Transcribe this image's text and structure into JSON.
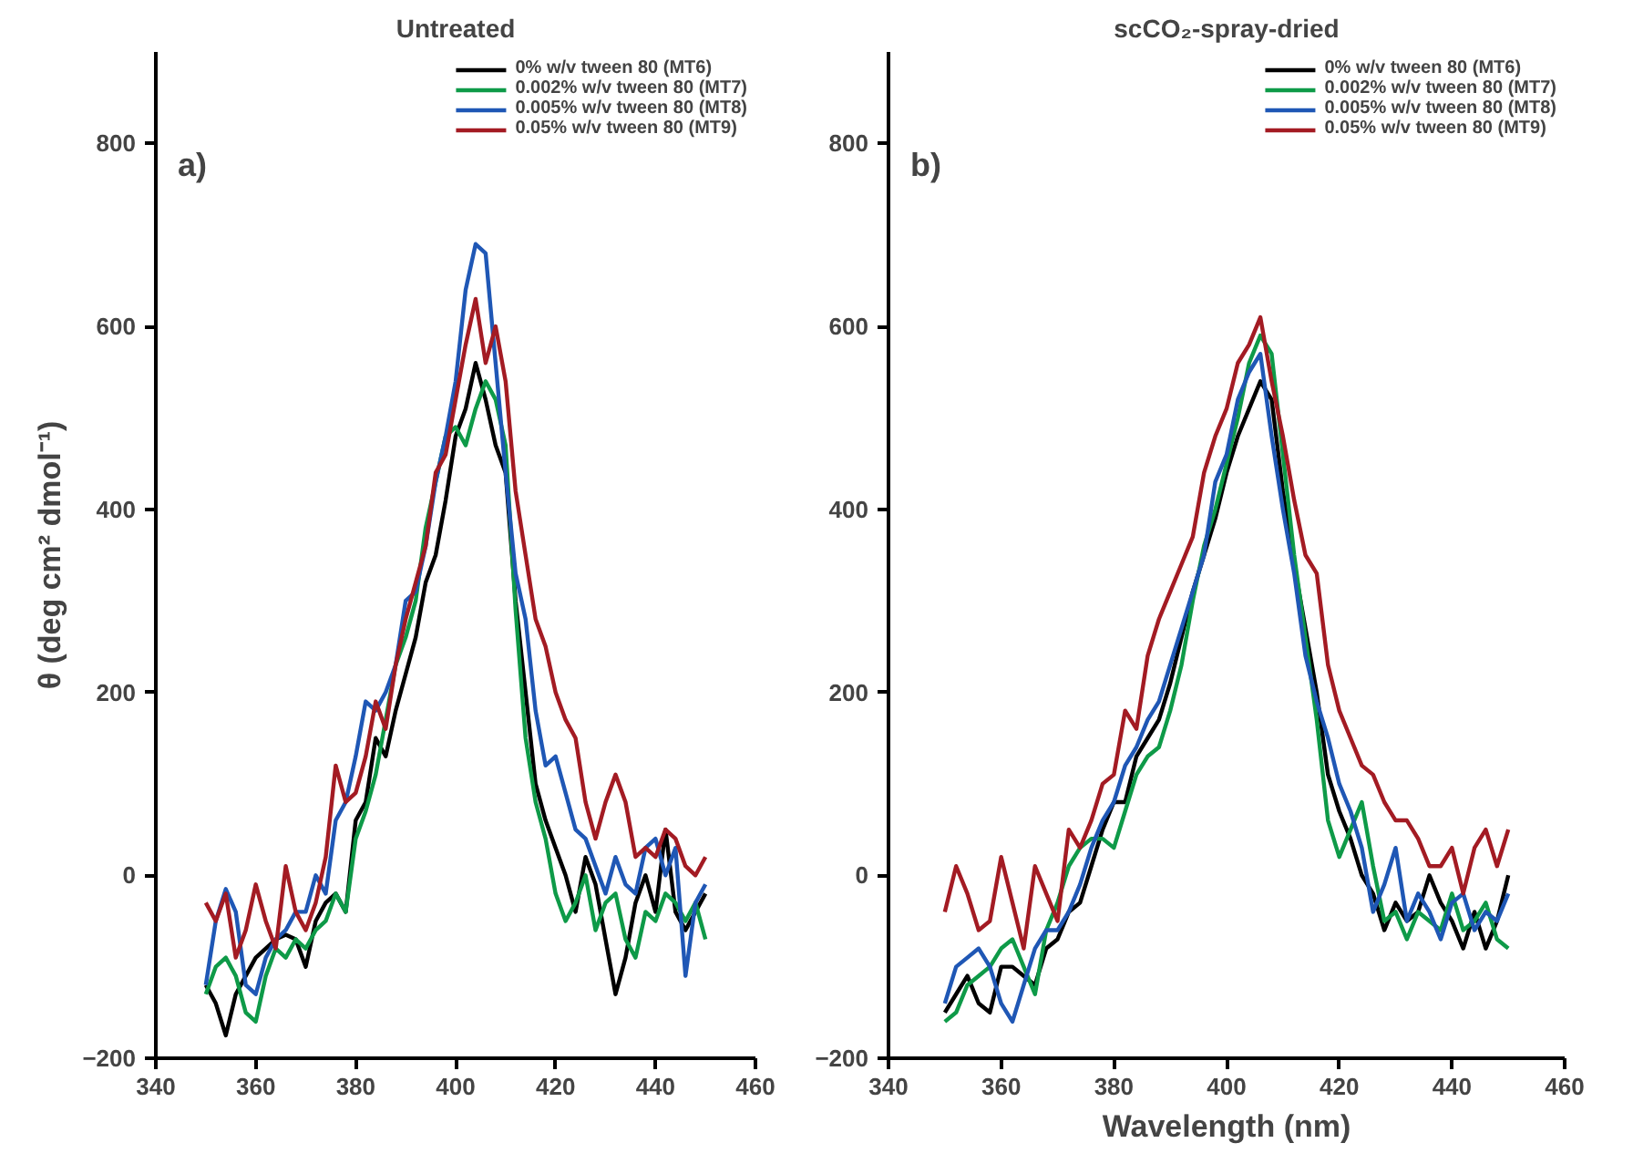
{
  "chart_data": [
    {
      "type": "line",
      "title": "Untreated",
      "ylabel": "θ (deg cm² dmol⁻¹)",
      "annotations": [
        "a)"
      ],
      "x": [
        350,
        352,
        354,
        356,
        358,
        360,
        362,
        364,
        366,
        368,
        370,
        372,
        374,
        376,
        378,
        380,
        382,
        384,
        386,
        388,
        390,
        392,
        394,
        396,
        398,
        400,
        402,
        404,
        406,
        408,
        410,
        412,
        414,
        416,
        418,
        420,
        422,
        424,
        426,
        428,
        430,
        432,
        434,
        436,
        438,
        440,
        442,
        444,
        446,
        448,
        450
      ],
      "series": [
        {
          "name": "0% w/v tween 80 (MT6)",
          "color": "#000000",
          "values": [
            -120,
            -140,
            -175,
            -130,
            -110,
            -90,
            -80,
            -70,
            -65,
            -70,
            -100,
            -50,
            -30,
            -20,
            -40,
            60,
            80,
            150,
            130,
            180,
            220,
            260,
            320,
            350,
            410,
            480,
            510,
            560,
            520,
            470,
            440,
            300,
            200,
            100,
            60,
            30,
            0,
            -40,
            20,
            -10,
            -70,
            -130,
            -90,
            -30,
            0,
            -40,
            50,
            -40,
            -60,
            -40,
            -20
          ]
        },
        {
          "name": "0.002% w/v tween 80 (MT7)",
          "color": "#0e9a48",
          "values": [
            -130,
            -100,
            -90,
            -110,
            -150,
            -160,
            -110,
            -80,
            -90,
            -70,
            -80,
            -60,
            -50,
            -20,
            -40,
            40,
            70,
            110,
            170,
            230,
            260,
            300,
            380,
            430,
            480,
            490,
            470,
            510,
            540,
            520,
            470,
            290,
            150,
            80,
            40,
            -20,
            -50,
            -30,
            0,
            -60,
            -30,
            -20,
            -70,
            -90,
            -40,
            -50,
            -20,
            -30,
            -50,
            -30,
            -70
          ]
        },
        {
          "name": "0.005% w/v tween 80 (MT8)",
          "color": "#1f57b5",
          "values": [
            -120,
            -50,
            -15,
            -40,
            -120,
            -130,
            -90,
            -70,
            -60,
            -40,
            -40,
            0,
            -20,
            60,
            80,
            130,
            190,
            180,
            200,
            230,
            300,
            310,
            360,
            430,
            480,
            540,
            640,
            690,
            680,
            560,
            440,
            330,
            280,
            180,
            120,
            130,
            90,
            50,
            40,
            10,
            -20,
            20,
            -10,
            -20,
            30,
            40,
            0,
            30,
            -110,
            -30,
            -10
          ]
        },
        {
          "name": "0.05% w/v tween 80 (MT9)",
          "color": "#a31b23",
          "values": [
            -30,
            -50,
            -20,
            -90,
            -60,
            -10,
            -50,
            -80,
            10,
            -40,
            -60,
            -30,
            20,
            120,
            80,
            90,
            130,
            190,
            160,
            230,
            280,
            320,
            360,
            440,
            460,
            520,
            580,
            630,
            560,
            600,
            540,
            420,
            350,
            280,
            250,
            200,
            170,
            150,
            80,
            40,
            80,
            110,
            80,
            20,
            30,
            20,
            50,
            40,
            10,
            0,
            20
          ]
        }
      ],
      "xlim": [
        340,
        460
      ],
      "ylim": [
        -200,
        900
      ],
      "xticks": [
        340,
        360,
        380,
        400,
        420,
        440,
        460
      ],
      "yticks": [
        -200,
        0,
        200,
        400,
        600,
        800
      ],
      "legend": "top right",
      "line_style": "solid"
    },
    {
      "type": "line",
      "title": "scCO₂-spray-dried",
      "xlabel": "Wavelength (nm)",
      "annotations": [
        "b)"
      ],
      "x": [
        350,
        352,
        354,
        356,
        358,
        360,
        362,
        364,
        366,
        368,
        370,
        372,
        374,
        376,
        378,
        380,
        382,
        384,
        386,
        388,
        390,
        392,
        394,
        396,
        398,
        400,
        402,
        404,
        406,
        408,
        410,
        412,
        414,
        416,
        418,
        420,
        422,
        424,
        426,
        428,
        430,
        432,
        434,
        436,
        438,
        440,
        442,
        444,
        446,
        448,
        450
      ],
      "series": [
        {
          "name": "0% w/v tween 80 (MT6)",
          "color": "#000000",
          "values": [
            -150,
            -130,
            -110,
            -140,
            -150,
            -100,
            -100,
            -110,
            -120,
            -80,
            -70,
            -40,
            -30,
            10,
            50,
            80,
            80,
            130,
            150,
            170,
            210,
            260,
            310,
            350,
            390,
            440,
            480,
            510,
            540,
            520,
            420,
            340,
            270,
            200,
            110,
            70,
            40,
            0,
            -20,
            -60,
            -30,
            -50,
            -40,
            0,
            -30,
            -50,
            -80,
            -40,
            -80,
            -50,
            0
          ]
        },
        {
          "name": "0.002% w/v tween 80 (MT7)",
          "color": "#0e9a48",
          "values": [
            -160,
            -150,
            -120,
            -110,
            -100,
            -80,
            -70,
            -100,
            -130,
            -60,
            -30,
            10,
            30,
            40,
            40,
            30,
            70,
            110,
            130,
            140,
            180,
            230,
            300,
            360,
            400,
            450,
            500,
            560,
            590,
            570,
            460,
            350,
            260,
            170,
            60,
            20,
            50,
            80,
            10,
            -50,
            -40,
            -70,
            -40,
            -50,
            -60,
            -20,
            -60,
            -50,
            -30,
            -70,
            -80
          ]
        },
        {
          "name": "0.005% w/v tween 80 (MT8)",
          "color": "#1f57b5",
          "values": [
            -140,
            -100,
            -90,
            -80,
            -100,
            -140,
            -160,
            -120,
            -80,
            -60,
            -60,
            -40,
            -10,
            30,
            60,
            80,
            120,
            140,
            170,
            190,
            230,
            270,
            310,
            350,
            430,
            460,
            520,
            550,
            570,
            480,
            400,
            330,
            240,
            190,
            150,
            100,
            70,
            30,
            -40,
            -10,
            30,
            -50,
            -20,
            -40,
            -70,
            -30,
            -20,
            -60,
            -40,
            -50,
            -20
          ]
        },
        {
          "name": "0.05% w/v tween 80 (MT9)",
          "color": "#a31b23",
          "values": [
            -40,
            10,
            -20,
            -60,
            -50,
            20,
            -30,
            -80,
            10,
            -20,
            -50,
            50,
            30,
            60,
            100,
            110,
            180,
            160,
            240,
            280,
            310,
            340,
            370,
            440,
            480,
            510,
            560,
            580,
            610,
            540,
            480,
            410,
            350,
            330,
            230,
            180,
            150,
            120,
            110,
            80,
            60,
            60,
            40,
            10,
            10,
            30,
            -20,
            30,
            50,
            10,
            50
          ]
        }
      ],
      "xlim": [
        340,
        460
      ],
      "ylim": [
        -200,
        900
      ],
      "xticks": [
        340,
        360,
        380,
        400,
        420,
        440,
        460
      ],
      "yticks": [
        -200,
        0,
        200,
        400,
        600,
        800
      ],
      "legend": "top right",
      "line_style": "solid"
    }
  ]
}
